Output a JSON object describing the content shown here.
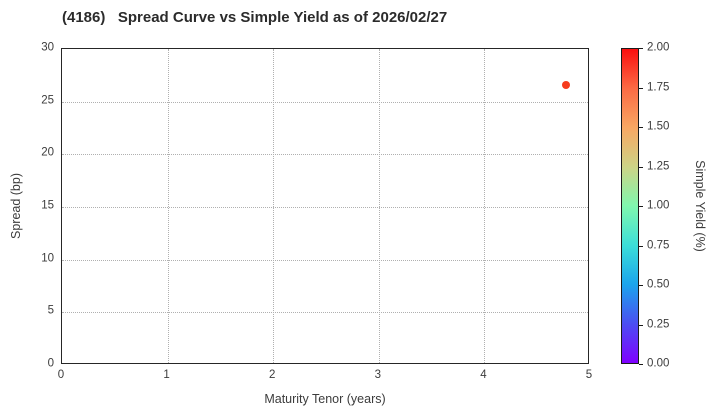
{
  "chart_data": {
    "type": "scatter",
    "title": "(4186)   Spread Curve vs Simple Yield as of 2026/02/27",
    "xlabel": "Maturity Tenor (years)",
    "ylabel": "Spread (bp)",
    "xlim": [
      0,
      5
    ],
    "ylim": [
      0,
      30
    ],
    "x_ticks": [
      0,
      1,
      2,
      3,
      4,
      5
    ],
    "y_ticks": [
      0,
      5,
      10,
      15,
      20,
      25,
      30
    ],
    "grid": "dotted",
    "legend": "none",
    "points": [
      {
        "maturity": 4.77,
        "spread": 26.6,
        "simple_yield_approx": 1.9,
        "color": "#f63c1d"
      }
    ],
    "colorbar": {
      "label": "Simple Yield (%)",
      "min": 0.0,
      "max": 2.0,
      "tick_labels": [
        "0.00",
        "0.25",
        "0.50",
        "0.75",
        "1.00",
        "1.25",
        "1.50",
        "1.75",
        "2.00"
      ],
      "colormap": "rainbow",
      "gradient_stops_bottom_to_top": [
        "#7f00ff",
        "#4b4ef2",
        "#1ba4ec",
        "#3cdfd8",
        "#80f7ae",
        "#cdd386",
        "#f9a763",
        "#fb6a44",
        "#fa0f0f"
      ]
    },
    "colors": {
      "grid": "#b0b0b0",
      "axis_border": "#262626",
      "text": "#3c3c3c",
      "title_text": "#2b2b2b"
    }
  }
}
